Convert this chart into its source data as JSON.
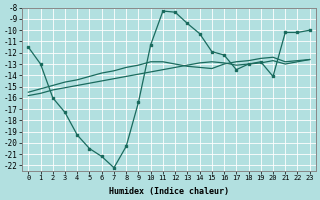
{
  "xlabel": "Humidex (Indice chaleur)",
  "bg_color": "#b2e0e0",
  "grid_color": "#ffffff",
  "line_color": "#1a6b5e",
  "xlim": [
    -0.5,
    23.5
  ],
  "ymin": -8,
  "ymax": -22.5,
  "yticks": [
    -8,
    -9,
    -10,
    -11,
    -12,
    -13,
    -14,
    -15,
    -16,
    -17,
    -18,
    -19,
    -20,
    -21,
    -22
  ],
  "xticks": [
    0,
    1,
    2,
    3,
    4,
    5,
    6,
    7,
    8,
    9,
    10,
    11,
    12,
    13,
    14,
    15,
    16,
    17,
    18,
    19,
    20,
    21,
    22,
    23
  ],
  "line1_x": [
    0,
    1,
    2,
    3,
    4,
    5,
    6,
    7,
    8,
    9,
    10,
    11,
    12,
    13,
    14,
    15,
    16,
    17,
    18,
    19,
    20,
    21,
    22,
    23
  ],
  "line1_y": [
    -11.5,
    -13.0,
    -16.0,
    -17.3,
    -19.3,
    -20.5,
    -21.2,
    -22.2,
    -20.3,
    -16.4,
    -11.3,
    -8.3,
    -8.4,
    -9.4,
    -10.3,
    -11.9,
    -12.2,
    -13.5,
    -13.0,
    -12.8,
    -14.1,
    -10.2,
    -10.2,
    -10.0
  ],
  "line2_x": [
    0,
    1,
    2,
    3,
    4,
    5,
    6,
    7,
    8,
    9,
    10,
    11,
    12,
    13,
    14,
    15,
    16,
    17,
    18,
    19,
    20,
    21,
    22,
    23
  ],
  "line2_y": [
    -15.5,
    -15.2,
    -14.9,
    -14.6,
    -14.4,
    -14.1,
    -13.8,
    -13.6,
    -13.3,
    -13.1,
    -12.8,
    -12.8,
    -13.0,
    -13.2,
    -13.3,
    -13.4,
    -13.0,
    -12.8,
    -12.7,
    -12.5,
    -12.4,
    -12.8,
    -12.7,
    -12.6
  ],
  "line3_x": [
    0,
    1,
    2,
    3,
    4,
    5,
    6,
    7,
    8,
    9,
    10,
    11,
    12,
    13,
    14,
    15,
    16,
    17,
    18,
    19,
    20,
    21,
    22,
    23
  ],
  "line3_y": [
    -15.8,
    -15.6,
    -15.3,
    -15.1,
    -14.9,
    -14.7,
    -14.5,
    -14.3,
    -14.1,
    -13.9,
    -13.7,
    -13.5,
    -13.3,
    -13.1,
    -12.9,
    -12.8,
    -12.9,
    -13.1,
    -13.0,
    -12.9,
    -12.7,
    -13.0,
    -12.8,
    -12.6
  ]
}
